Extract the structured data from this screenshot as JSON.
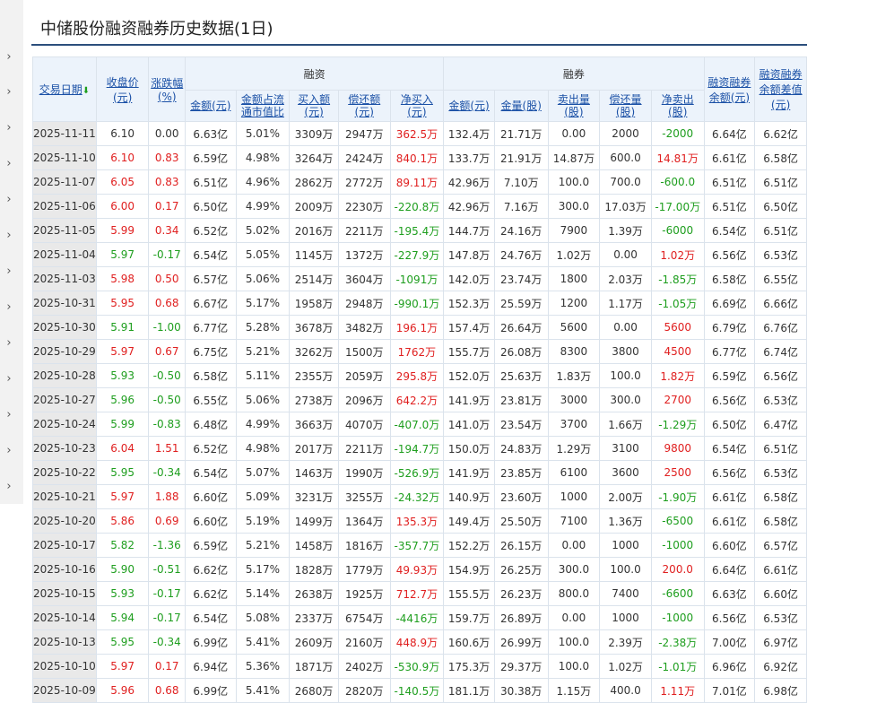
{
  "page": {
    "title": "中储股份融资融券历史数据(1日)"
  },
  "colors": {
    "up": "#e02020",
    "down": "#1e9e1e",
    "header_bg": "#ecf3fb",
    "link": "#1a50a6"
  },
  "table": {
    "group_financing": "融资",
    "group_securities": "融券",
    "columns": {
      "date": "交易日期",
      "close": "收盘价\n(元)",
      "change": "涨跌幅\n(%)",
      "fin_balance": "金额(元)",
      "fin_ratio": "金额占流\n通市值比",
      "fin_buy": "买入额\n(元)",
      "fin_repay": "偿还额\n(元)",
      "fin_net": "净买入\n(元)",
      "sec_balance": "金额(元)",
      "sec_volume": "金量(股)",
      "sec_sell": "卖出量\n(股)",
      "sec_repay": "偿还量\n(股)",
      "sec_net": "净卖出\n(股)",
      "total_balance": "融资融券\n余额(元)",
      "diff": "融资融券\n余额差值\n(元)"
    },
    "rows": [
      [
        "2025-11-11",
        "6.10",
        "0.00",
        "6.63亿",
        "5.01%",
        "3309万",
        "2947万",
        "362.5万",
        "132.4万",
        "21.71万",
        "0.00",
        "2000",
        "-2000",
        "6.64亿",
        "6.62亿"
      ],
      [
        "2025-11-10",
        "6.10",
        "0.83",
        "6.59亿",
        "4.98%",
        "3264万",
        "2424万",
        "840.1万",
        "133.7万",
        "21.91万",
        "14.87万",
        "600.0",
        "14.81万",
        "6.61亿",
        "6.58亿"
      ],
      [
        "2025-11-07",
        "6.05",
        "0.83",
        "6.51亿",
        "4.96%",
        "2862万",
        "2772万",
        "89.11万",
        "42.96万",
        "7.10万",
        "100.0",
        "700.0",
        "-600.0",
        "6.51亿",
        "6.51亿"
      ],
      [
        "2025-11-06",
        "6.00",
        "0.17",
        "6.50亿",
        "4.99%",
        "2009万",
        "2230万",
        "-220.8万",
        "42.96万",
        "7.16万",
        "300.0",
        "17.03万",
        "-17.00万",
        "6.51亿",
        "6.50亿"
      ],
      [
        "2025-11-05",
        "5.99",
        "0.34",
        "6.52亿",
        "5.02%",
        "2016万",
        "2211万",
        "-195.4万",
        "144.7万",
        "24.16万",
        "7900",
        "1.39万",
        "-6000",
        "6.54亿",
        "6.51亿"
      ],
      [
        "2025-11-04",
        "5.97",
        "-0.17",
        "6.54亿",
        "5.05%",
        "1145万",
        "1372万",
        "-227.9万",
        "147.8万",
        "24.76万",
        "1.02万",
        "0.00",
        "1.02万",
        "6.56亿",
        "6.53亿"
      ],
      [
        "2025-11-03",
        "5.98",
        "0.50",
        "6.57亿",
        "5.06%",
        "2514万",
        "3604万",
        "-1091万",
        "142.0万",
        "23.74万",
        "1800",
        "2.03万",
        "-1.85万",
        "6.58亿",
        "6.55亿"
      ],
      [
        "2025-10-31",
        "5.95",
        "0.68",
        "6.67亿",
        "5.17%",
        "1958万",
        "2948万",
        "-990.1万",
        "152.3万",
        "25.59万",
        "1200",
        "1.17万",
        "-1.05万",
        "6.69亿",
        "6.66亿"
      ],
      [
        "2025-10-30",
        "5.91",
        "-1.00",
        "6.77亿",
        "5.28%",
        "3678万",
        "3482万",
        "196.1万",
        "157.4万",
        "26.64万",
        "5600",
        "0.00",
        "5600",
        "6.79亿",
        "6.76亿"
      ],
      [
        "2025-10-29",
        "5.97",
        "0.67",
        "6.75亿",
        "5.21%",
        "3262万",
        "1500万",
        "1762万",
        "155.7万",
        "26.08万",
        "8300",
        "3800",
        "4500",
        "6.77亿",
        "6.74亿"
      ],
      [
        "2025-10-28",
        "5.93",
        "-0.50",
        "6.58亿",
        "5.11%",
        "2355万",
        "2059万",
        "295.8万",
        "152.0万",
        "25.63万",
        "1.83万",
        "100.0",
        "1.82万",
        "6.59亿",
        "6.56亿"
      ],
      [
        "2025-10-27",
        "5.96",
        "-0.50",
        "6.55亿",
        "5.06%",
        "2738万",
        "2096万",
        "642.2万",
        "141.9万",
        "23.81万",
        "3000",
        "300.0",
        "2700",
        "6.56亿",
        "6.53亿"
      ],
      [
        "2025-10-24",
        "5.99",
        "-0.83",
        "6.48亿",
        "4.99%",
        "3663万",
        "4070万",
        "-407.0万",
        "141.0万",
        "23.54万",
        "3700",
        "1.66万",
        "-1.29万",
        "6.50亿",
        "6.47亿"
      ],
      [
        "2025-10-23",
        "6.04",
        "1.51",
        "6.52亿",
        "4.98%",
        "2017万",
        "2211万",
        "-194.7万",
        "150.0万",
        "24.83万",
        "1.29万",
        "3100",
        "9800",
        "6.54亿",
        "6.51亿"
      ],
      [
        "2025-10-22",
        "5.95",
        "-0.34",
        "6.54亿",
        "5.07%",
        "1463万",
        "1990万",
        "-526.9万",
        "141.9万",
        "23.85万",
        "6100",
        "3600",
        "2500",
        "6.56亿",
        "6.53亿"
      ],
      [
        "2025-10-21",
        "5.97",
        "1.88",
        "6.60亿",
        "5.09%",
        "3231万",
        "3255万",
        "-24.32万",
        "140.9万",
        "23.60万",
        "1000",
        "2.00万",
        "-1.90万",
        "6.61亿",
        "6.58亿"
      ],
      [
        "2025-10-20",
        "5.86",
        "0.69",
        "6.60亿",
        "5.19%",
        "1499万",
        "1364万",
        "135.3万",
        "149.4万",
        "25.50万",
        "7100",
        "1.36万",
        "-6500",
        "6.61亿",
        "6.58亿"
      ],
      [
        "2025-10-17",
        "5.82",
        "-1.36",
        "6.59亿",
        "5.21%",
        "1458万",
        "1816万",
        "-357.7万",
        "152.2万",
        "26.15万",
        "0.00",
        "1000",
        "-1000",
        "6.60亿",
        "6.57亿"
      ],
      [
        "2025-10-16",
        "5.90",
        "-0.51",
        "6.62亿",
        "5.17%",
        "1828万",
        "1779万",
        "49.93万",
        "154.9万",
        "26.25万",
        "300.0",
        "100.0",
        "200.0",
        "6.64亿",
        "6.61亿"
      ],
      [
        "2025-10-15",
        "5.93",
        "-0.17",
        "6.62亿",
        "5.14%",
        "2638万",
        "1925万",
        "712.7万",
        "155.5万",
        "26.23万",
        "800.0",
        "7400",
        "-6600",
        "6.63亿",
        "6.60亿"
      ],
      [
        "2025-10-14",
        "5.94",
        "-0.17",
        "6.54亿",
        "5.08%",
        "2337万",
        "6754万",
        "-4416万",
        "159.7万",
        "26.89万",
        "0.00",
        "1000",
        "-1000",
        "6.56亿",
        "6.53亿"
      ],
      [
        "2025-10-13",
        "5.95",
        "-0.34",
        "6.99亿",
        "5.41%",
        "2609万",
        "2160万",
        "448.9万",
        "160.6万",
        "26.99万",
        "100.0",
        "2.39万",
        "-2.38万",
        "7.00亿",
        "6.97亿"
      ],
      [
        "2025-10-10",
        "5.97",
        "0.17",
        "6.94亿",
        "5.36%",
        "1871万",
        "2402万",
        "-530.9万",
        "175.3万",
        "29.37万",
        "100.0",
        "1.02万",
        "-1.01万",
        "6.96亿",
        "6.92亿"
      ],
      [
        "2025-10-09",
        "5.96",
        "0.68",
        "6.99亿",
        "5.41%",
        "2680万",
        "2820万",
        "-140.5万",
        "181.1万",
        "30.38万",
        "1.15万",
        "400.0",
        "1.11万",
        "7.01亿",
        "6.98亿"
      ]
    ]
  }
}
